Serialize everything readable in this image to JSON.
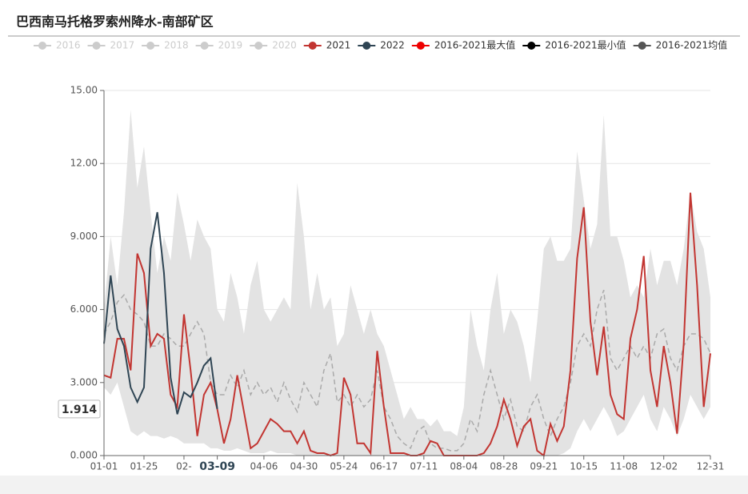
{
  "chart_data": {
    "type": "line",
    "title": "巴西南马托格罗索州降水-南部矿区",
    "categories": [
      "01-01",
      null,
      null,
      null,
      null,
      null,
      "01-25",
      null,
      null,
      null,
      null,
      null,
      "02-",
      null,
      null,
      null,
      null,
      "03-09",
      null,
      null,
      null,
      null,
      null,
      null,
      "04-06",
      null,
      null,
      null,
      null,
      null,
      "04-30",
      null,
      null,
      null,
      null,
      null,
      "05-24",
      null,
      null,
      null,
      null,
      null,
      "06-17",
      null,
      null,
      null,
      null,
      null,
      "07-11",
      null,
      null,
      null,
      null,
      null,
      "08-04",
      null,
      null,
      null,
      null,
      null,
      "08-28",
      null,
      null,
      null,
      null,
      null,
      "09-21",
      null,
      null,
      null,
      null,
      null,
      "10-15",
      null,
      null,
      null,
      null,
      null,
      "11-08",
      null,
      null,
      null,
      null,
      null,
      "12-02",
      null,
      null,
      null,
      null,
      null,
      null,
      "12-31"
    ],
    "hidden_series": [
      {
        "name": "2016",
        "color": "#cccccc"
      },
      {
        "name": "2017",
        "color": "#cccccc"
      },
      {
        "name": "2018",
        "color": "#cccccc"
      },
      {
        "name": "2019",
        "color": "#cccccc"
      },
      {
        "name": "2020",
        "color": "#cccccc"
      }
    ],
    "series": [
      {
        "name": "2021",
        "color": "#c23531",
        "values": [
          3.3,
          3.2,
          4.8,
          4.8,
          3.5,
          8.3,
          7.5,
          4.5,
          5.0,
          4.8,
          2.5,
          2.0,
          5.8,
          3.5,
          0.8,
          2.5,
          3.0,
          1.9,
          0.5,
          1.5,
          3.3,
          1.8,
          0.3,
          0.5,
          1.0,
          1.5,
          1.3,
          1.0,
          1.0,
          0.5,
          1.0,
          0.2,
          0.1,
          0.1,
          0.0,
          0.1,
          3.2,
          2.5,
          0.5,
          0.5,
          0.1,
          4.3,
          2.0,
          0.1,
          0.1,
          0.1,
          0.0,
          0.0,
          0.1,
          0.6,
          0.5,
          0.0,
          0.0,
          0.0,
          0.0,
          0.0,
          0.0,
          0.1,
          0.5,
          1.2,
          2.3,
          1.5,
          0.4,
          1.2,
          1.5,
          0.2,
          0.0,
          1.3,
          0.6,
          1.2,
          3.5,
          8.1,
          10.2,
          5.5,
          3.3,
          5.3,
          2.5,
          1.7,
          1.5,
          4.8,
          6.0,
          8.2,
          3.5,
          2.0,
          4.5,
          3.0,
          0.9,
          4.6,
          10.8,
          7.0,
          2.0,
          4.2
        ]
      },
      {
        "name": "2022",
        "color": "#2f4554",
        "values": [
          4.6,
          7.4,
          5.2,
          4.5,
          2.8,
          2.2,
          2.8,
          8.5,
          10.0,
          7.5,
          3.2,
          1.7,
          2.6,
          2.4,
          3.0,
          3.7,
          4.0,
          1.914,
          null,
          null,
          null,
          null,
          null,
          null,
          null,
          null,
          null,
          null,
          null,
          null,
          null,
          null,
          null,
          null,
          null,
          null,
          null,
          null,
          null,
          null,
          null,
          null,
          null,
          null,
          null,
          null,
          null,
          null,
          null,
          null,
          null,
          null,
          null,
          null,
          null,
          null,
          null,
          null,
          null,
          null,
          null,
          null,
          null,
          null,
          null,
          null,
          null,
          null,
          null,
          null,
          null,
          null,
          null,
          null,
          null,
          null,
          null,
          null,
          null,
          null,
          null,
          null,
          null,
          null,
          null,
          null,
          null,
          null,
          null,
          null,
          null,
          null
        ]
      },
      {
        "name": "2016-2021最大值",
        "color": "#ee0000",
        "fill": "#e3e3e3",
        "values": [
          6.0,
          9.0,
          7.0,
          10.0,
          14.2,
          11.0,
          12.7,
          10.0,
          7.5,
          9.0,
          8.0,
          10.8,
          9.5,
          8.0,
          9.7,
          9.0,
          8.5,
          6.0,
          5.5,
          7.5,
          6.5,
          5.0,
          7.0,
          8.0,
          6.0,
          5.5,
          6.0,
          6.5,
          6.0,
          11.2,
          9.0,
          6.0,
          7.5,
          6.0,
          6.5,
          4.5,
          5.0,
          7.0,
          6.0,
          5.0,
          6.0,
          5.0,
          4.5,
          3.5,
          2.5,
          1.5,
          2.0,
          1.5,
          1.5,
          1.2,
          1.5,
          1.0,
          1.0,
          0.8,
          2.0,
          6.0,
          4.5,
          3.5,
          6.0,
          7.5,
          5.0,
          6.0,
          5.5,
          4.5,
          3.0,
          5.5,
          8.5,
          9.0,
          8.0,
          8.0,
          8.5,
          12.5,
          10.5,
          8.5,
          9.5,
          14.0,
          9.0,
          9.0,
          8.0,
          6.5,
          7.0,
          6.5,
          8.5,
          7.0,
          8.0,
          8.0,
          7.0,
          8.5,
          10.8,
          9.2,
          8.5,
          6.5
        ]
      },
      {
        "name": "2016-2021最小值",
        "color": "#000000",
        "fill": "#ffffff",
        "values": [
          2.8,
          2.5,
          3.0,
          2.0,
          1.0,
          0.8,
          1.0,
          0.8,
          0.8,
          0.7,
          0.8,
          0.7,
          0.5,
          0.5,
          0.5,
          0.5,
          0.3,
          0.3,
          0.2,
          0.2,
          0.3,
          0.2,
          0.1,
          0.1,
          0.1,
          0.2,
          0.1,
          0.1,
          0.1,
          0.0,
          0.0,
          0.0,
          0.0,
          0.0,
          0.0,
          0.0,
          0.0,
          0.0,
          0.0,
          0.0,
          0.0,
          0.0,
          0.0,
          0.0,
          0.0,
          0.0,
          0.0,
          0.0,
          0.0,
          0.0,
          0.0,
          0.0,
          0.0,
          0.0,
          0.0,
          0.0,
          0.0,
          0.0,
          0.0,
          0.0,
          0.0,
          0.0,
          0.0,
          0.0,
          0.0,
          0.0,
          0.0,
          0.0,
          0.0,
          0.1,
          0.3,
          1.0,
          1.5,
          1.0,
          1.5,
          2.0,
          1.5,
          0.8,
          1.0,
          1.5,
          2.0,
          2.5,
          1.5,
          1.0,
          2.0,
          1.5,
          0.8,
          1.5,
          2.5,
          2.0,
          1.5,
          2.0
        ]
      },
      {
        "name": "2016-2021均值",
        "color": "#555555",
        "dashed": true,
        "line_color": "#aaaaaa",
        "values": [
          5.0,
          5.5,
          6.3,
          6.6,
          6.0,
          5.8,
          5.5,
          4.5,
          4.5,
          5.0,
          4.8,
          4.5,
          4.5,
          5.0,
          5.5,
          5.0,
          3.0,
          2.5,
          2.5,
          3.3,
          2.8,
          3.5,
          2.5,
          3.0,
          2.5,
          2.8,
          2.2,
          3.0,
          2.3,
          1.8,
          3.0,
          2.5,
          2.0,
          3.5,
          4.2,
          2.2,
          2.5,
          2.0,
          2.5,
          2.0,
          2.3,
          3.5,
          2.0,
          1.5,
          0.8,
          0.5,
          0.3,
          1.0,
          1.2,
          0.5,
          0.3,
          0.3,
          0.2,
          0.2,
          0.5,
          1.5,
          1.0,
          2.5,
          3.5,
          2.5,
          1.5,
          2.3,
          1.2,
          1.0,
          2.0,
          2.5,
          1.5,
          0.8,
          1.5,
          2.0,
          3.0,
          4.5,
          5.0,
          4.5,
          6.0,
          6.8,
          4.0,
          3.5,
          4.0,
          4.5,
          4.0,
          4.5,
          4.0,
          5.0,
          5.2,
          4.0,
          3.5,
          4.5,
          5.0,
          5.0,
          4.8,
          4.2
        ]
      }
    ],
    "ylim": [
      0,
      15
    ],
    "yticks": [
      {
        "value": 0,
        "label": "0.000"
      },
      {
        "value": 3,
        "label": "3.000"
      },
      {
        "value": 6,
        "label": "6.000"
      },
      {
        "value": 9,
        "label": "9.000"
      },
      {
        "value": 12,
        "label": "12.00"
      },
      {
        "value": 15,
        "label": "15.00"
      }
    ],
    "grid": true,
    "pointer_value": 1.914
  }
}
